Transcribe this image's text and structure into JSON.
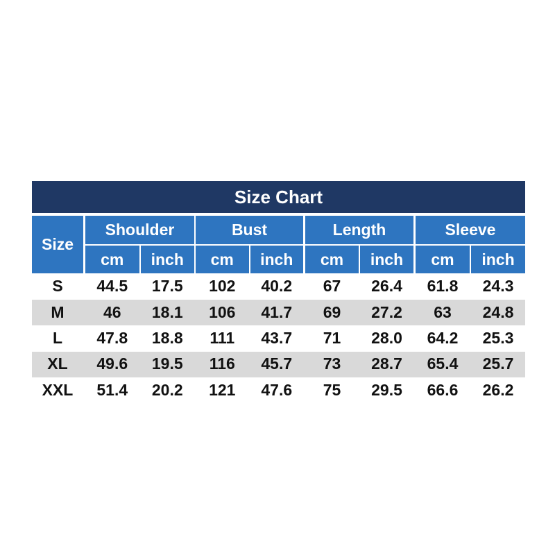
{
  "title": "Size Chart",
  "table": {
    "size_header": "Size",
    "groups": [
      {
        "name": "Shoulder",
        "units": [
          "cm",
          "inch"
        ]
      },
      {
        "name": "Bust",
        "units": [
          "cm",
          "inch"
        ]
      },
      {
        "name": "Length",
        "units": [
          "cm",
          "inch"
        ]
      },
      {
        "name": "Sleeve",
        "units": [
          "cm",
          "inch"
        ]
      }
    ],
    "rows": [
      [
        "S",
        "44.5",
        "17.5",
        "102",
        "40.2",
        "67",
        "26.4",
        "61.8",
        "24.3"
      ],
      [
        "M",
        "46",
        "18.1",
        "106",
        "41.7",
        "69",
        "27.2",
        "63",
        "24.8"
      ],
      [
        "L",
        "47.8",
        "18.8",
        "111",
        "43.7",
        "71",
        "28.0",
        "64.2",
        "25.3"
      ],
      [
        "XL",
        "49.6",
        "19.5",
        "116",
        "45.7",
        "73",
        "28.7",
        "65.4",
        "25.7"
      ],
      [
        "XXL",
        "51.4",
        "20.2",
        "121",
        "47.6",
        "75",
        "29.5",
        "66.6",
        "26.2"
      ]
    ]
  }
}
